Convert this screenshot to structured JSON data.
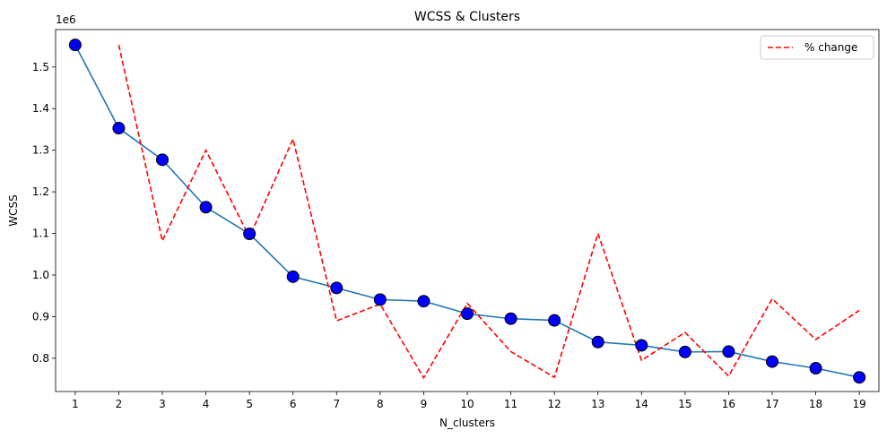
{
  "chart_data": {
    "type": "line",
    "title": "WCSS & Clusters",
    "xlabel": "N_clusters",
    "ylabel": "WCSS",
    "y_offset_label": "1e6",
    "x": [
      1,
      2,
      3,
      4,
      5,
      6,
      7,
      8,
      9,
      10,
      11,
      12,
      13,
      14,
      15,
      16,
      17,
      18,
      19
    ],
    "xticks": [
      "1",
      "2",
      "3",
      "4",
      "5",
      "6",
      "7",
      "8",
      "9",
      "10",
      "11",
      "12",
      "13",
      "14",
      "15",
      "16",
      "17",
      "18",
      "19"
    ],
    "ylim": [
      0.72,
      1.59
    ],
    "yticks": [
      0.8,
      0.9,
      1.0,
      1.1,
      1.2,
      1.3,
      1.4,
      1.5
    ],
    "ytick_labels": [
      "0.8",
      "0.9",
      "1.0",
      "1.1",
      "1.2",
      "1.3",
      "1.4",
      "1.5"
    ],
    "grid": false,
    "legend_position": "top-right",
    "series": [
      {
        "type": "line-with-markers",
        "color": "#1f77b4",
        "marker_color": "#0000ff",
        "x": [
          1,
          2,
          3,
          4,
          5,
          6,
          7,
          8,
          9,
          10,
          11,
          12,
          13,
          14,
          15,
          16,
          17,
          18,
          19
        ],
        "values": [
          1.553,
          1.353,
          1.277,
          1.163,
          1.099,
          0.996,
          0.969,
          0.941,
          0.937,
          0.907,
          0.895,
          0.891,
          0.839,
          0.831,
          0.815,
          0.816,
          0.792,
          0.776,
          0.754
        ]
      },
      {
        "name": "% change",
        "type": "dashed-line",
        "color": "#ff0000",
        "x": [
          2,
          3,
          4,
          5,
          6,
          7,
          8,
          9,
          10,
          11,
          12,
          13,
          14,
          15,
          16,
          17,
          18,
          19
        ],
        "values": [
          1.553,
          1.082,
          1.3,
          1.091,
          1.327,
          0.89,
          0.93,
          0.753,
          0.932,
          0.816,
          0.754,
          1.1,
          0.795,
          0.862,
          0.757,
          0.943,
          0.845,
          0.915
        ]
      }
    ]
  }
}
